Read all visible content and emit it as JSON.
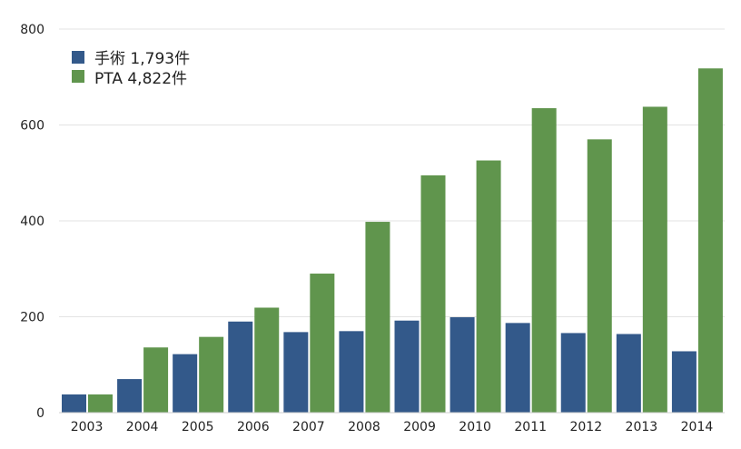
{
  "chart_data": {
    "type": "bar",
    "categories": [
      "2003",
      "2004",
      "2005",
      "2006",
      "2007",
      "2008",
      "2009",
      "2010",
      "2011",
      "2012",
      "2013",
      "2014"
    ],
    "series": [
      {
        "name": "手術 1,793件",
        "color": "#33598a",
        "values": [
          38,
          70,
          122,
          190,
          168,
          170,
          192,
          199,
          187,
          166,
          164,
          128
        ]
      },
      {
        "name": "PTA 4,822件",
        "color": "#60954d",
        "values": [
          38,
          136,
          158,
          219,
          290,
          398,
          495,
          526,
          635,
          570,
          638,
          718
        ]
      }
    ],
    "yticks": [
      "0",
      "200",
      "400",
      "600",
      "800"
    ],
    "ylim": [
      0,
      800
    ],
    "grid": true,
    "legend": "top-left",
    "title": "",
    "xlabel": "",
    "ylabel": ""
  }
}
